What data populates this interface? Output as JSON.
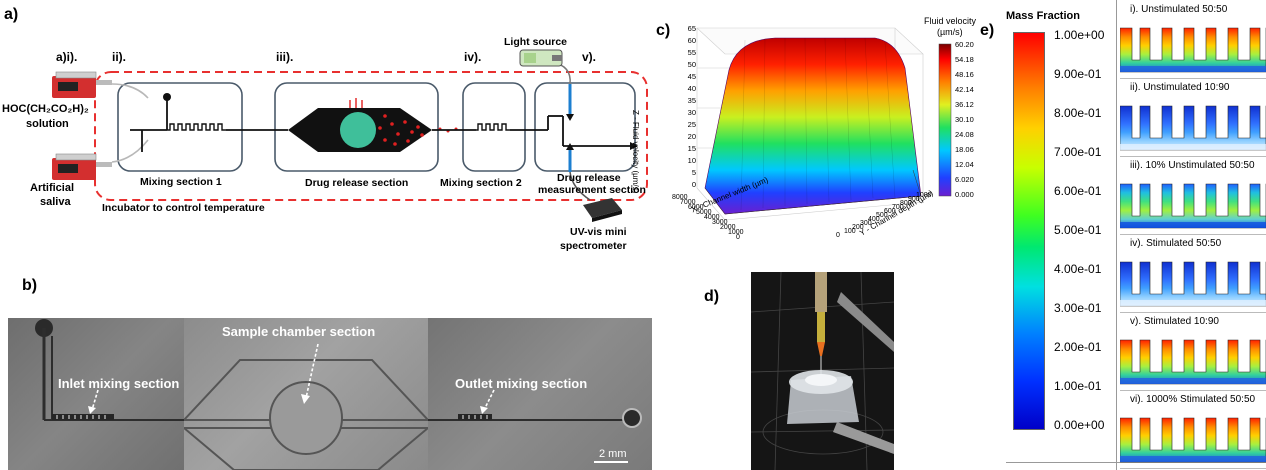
{
  "panel_labels": {
    "a": "a)",
    "b": "b)",
    "c": "c)",
    "d": "d)",
    "e": "e)"
  },
  "panel_a": {
    "step_labels": [
      "a)i).",
      "ii).",
      "iii).",
      "iv).",
      "v)."
    ],
    "pump1_label_line1": "HOC(CH₂CO₂H)₂",
    "pump1_label_line2": "solution",
    "pump2_label_line1": "Artificial",
    "pump2_label_line2": "saliva",
    "light_source": "Light source",
    "mixing1": "Mixing section 1",
    "incubator": "Incubator to control temperature",
    "drug_release": "Drug release section",
    "mixing2": "Mixing section 2",
    "measurement_line1": "Drug release",
    "measurement_line2": "measurement section",
    "spectrometer_line1": "UV-vis mini",
    "spectrometer_line2": "spectrometer",
    "colors": {
      "dashed_border": "#e8302f",
      "box_border": "#4a5a6a",
      "drug_circle": "#3fbf9a",
      "particles": "#e02020",
      "flow_cell": "#1c7fd0"
    }
  },
  "panel_b": {
    "inlet": "Inlet mixing section",
    "chamber": "Sample chamber section",
    "outlet": "Outlet mixing section",
    "scale": "2 mm"
  },
  "panel_c": {
    "legend_title_line1": "Fluid velocity",
    "legend_title_line2": "(µm/s)",
    "legend_ticks": [
      "60.20",
      "54.18",
      "48.16",
      "42.14",
      "36.12",
      "30.10",
      "24.08",
      "18.06",
      "12.04",
      "6.020",
      "0.000"
    ],
    "z_axis_label": "Z - Fluid velocity (µm/s)",
    "z_ticks": [
      "65",
      "60",
      "55",
      "50",
      "45",
      "40",
      "35",
      "30",
      "25",
      "20",
      "15",
      "10",
      "5",
      "0"
    ],
    "x_axis_label": "X - Channel width (µm)",
    "x_ticks": [
      "0",
      "1000",
      "2000",
      "3000",
      "4000",
      "5000",
      "6000",
      "7000",
      "8000"
    ],
    "y_axis_label": "Y - Channel depth (µm)",
    "y_ticks": [
      "0",
      "100",
      "200",
      "300",
      "400",
      "500",
      "600",
      "700",
      "800",
      "900",
      "1000"
    ]
  },
  "panel_e": {
    "title": "Mass Fraction",
    "scale_ticks": [
      "1.00e+00",
      "9.00e-01",
      "8.00e-01",
      "7.00e-01",
      "6.00e-01",
      "5.00e-01",
      "4.00e-01",
      "3.00e-01",
      "2.00e-01",
      "1.00e-01",
      "0.00e+00"
    ],
    "simulations": [
      {
        "label": "i). Unstimulated 50:50",
        "scheme": "hot"
      },
      {
        "label": "ii). Unstimulated 10:90",
        "scheme": "cold"
      },
      {
        "label": "iii). 10% Unstimulated 50:50",
        "scheme": "mid"
      },
      {
        "label": "iv). Stimulated 50:50",
        "scheme": "cold"
      },
      {
        "label": "v). Stimulated 10:90",
        "scheme": "hot"
      },
      {
        "label": "vi). 1000% Stimulated 50:50",
        "scheme": "hot"
      }
    ]
  }
}
